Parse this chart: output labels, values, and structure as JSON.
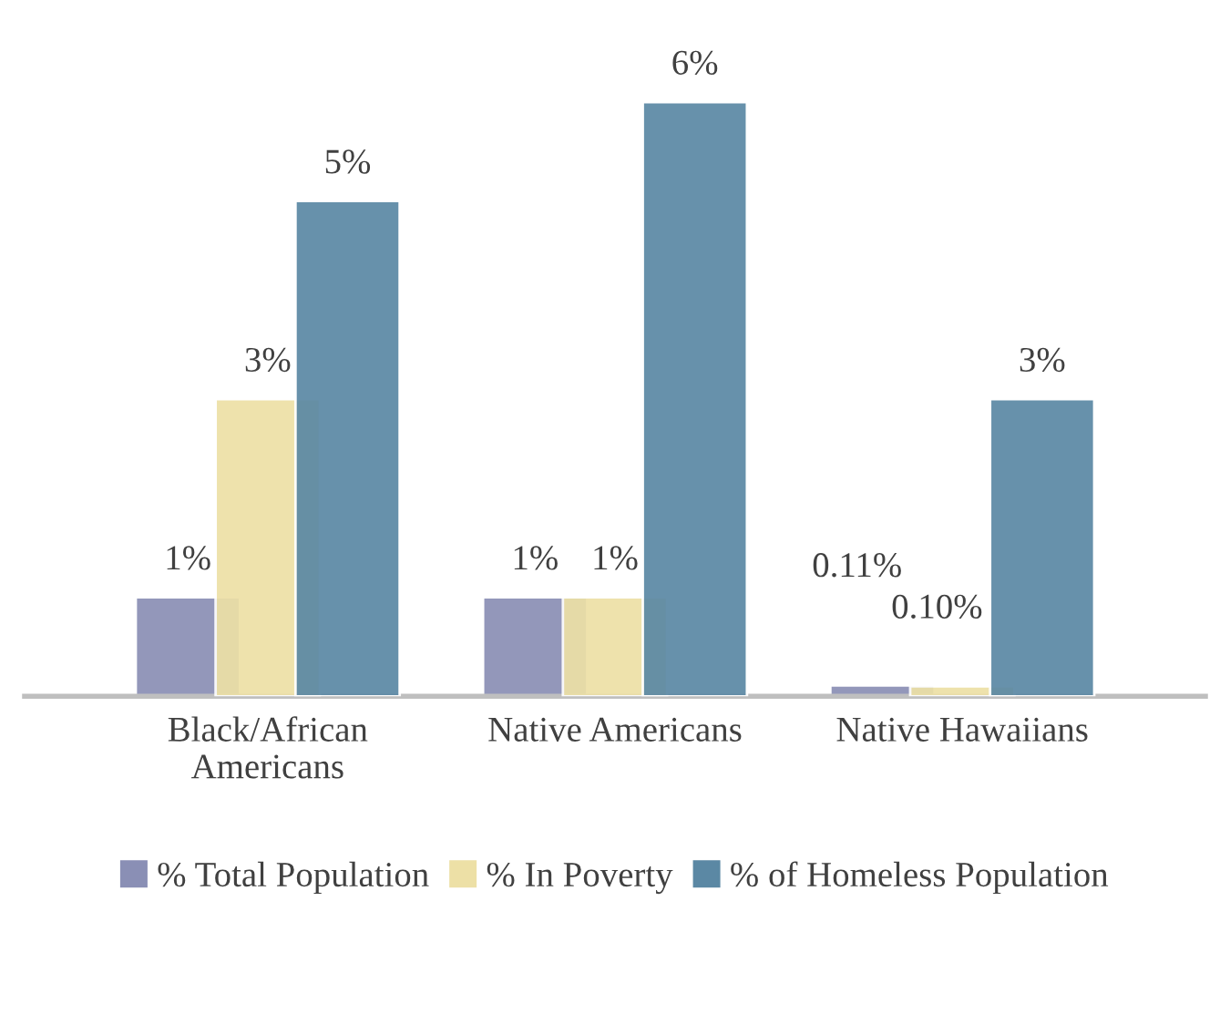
{
  "chart_data": {
    "type": "bar",
    "categories": [
      "Black/African\nAmericans",
      "Native Americans",
      "Native Hawaiians"
    ],
    "series": [
      {
        "name": "% Total Population",
        "color": "#8a8fb5",
        "values": [
          1,
          1,
          0.11
        ],
        "value_labels": [
          "1%",
          "1%",
          "0.11%"
        ]
      },
      {
        "name": "% In Poverty",
        "color": "#ede0a6",
        "values": [
          3,
          1,
          0.1
        ],
        "value_labels": [
          "3%",
          "1%",
          "0.10%"
        ]
      },
      {
        "name": "% of Homeless Population",
        "color": "#5b88a4",
        "values": [
          5,
          6,
          3
        ],
        "value_labels": [
          "5%",
          "6%",
          "3%"
        ]
      }
    ],
    "legend": "bottom"
  }
}
